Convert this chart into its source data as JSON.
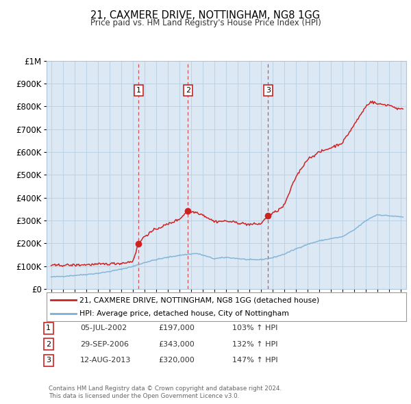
{
  "title": "21, CAXMERE DRIVE, NOTTINGHAM, NG8 1GG",
  "subtitle": "Price paid vs. HM Land Registry's House Price Index (HPI)",
  "background_color": "#ffffff",
  "plot_bg_color": "#dce9f5",
  "legend_line1": "21, CAXMERE DRIVE, NOTTINGHAM, NG8 1GG (detached house)",
  "legend_line2": "HPI: Average price, detached house, City of Nottingham",
  "hpi_color": "#7ab0d4",
  "price_color": "#cc2222",
  "vline_color": "#cc4444",
  "footer_line1": "Contains HM Land Registry data © Crown copyright and database right 2024.",
  "footer_line2": "This data is licensed under the Open Government Licence v3.0.",
  "transactions": [
    {
      "id": 1,
      "date": "05-JUL-2002",
      "price": 197000,
      "hpi_pct": "103%",
      "x_year": 2002.51
    },
    {
      "id": 2,
      "date": "29-SEP-2006",
      "price": 343000,
      "hpi_pct": "132%",
      "x_year": 2006.75
    },
    {
      "id": 3,
      "date": "12-AUG-2013",
      "price": 320000,
      "hpi_pct": "147%",
      "x_year": 2013.62
    }
  ],
  "ylim": [
    0,
    1000000
  ],
  "yticks": [
    0,
    100000,
    200000,
    300000,
    400000,
    500000,
    600000,
    700000,
    800000,
    900000,
    1000000
  ],
  "xlim_start": 1994.6,
  "xlim_end": 2025.5,
  "hpi_anchors": [
    [
      1995.0,
      52000
    ],
    [
      1996.0,
      55000
    ],
    [
      1997.0,
      59000
    ],
    [
      1998.0,
      63000
    ],
    [
      1999.0,
      68000
    ],
    [
      2000.0,
      76000
    ],
    [
      2001.0,
      86000
    ],
    [
      2002.0,
      98000
    ],
    [
      2003.0,
      115000
    ],
    [
      2004.0,
      128000
    ],
    [
      2005.0,
      138000
    ],
    [
      2006.0,
      147000
    ],
    [
      2007.0,
      153000
    ],
    [
      2007.5,
      155000
    ],
    [
      2008.0,
      148000
    ],
    [
      2009.0,
      132000
    ],
    [
      2010.0,
      138000
    ],
    [
      2011.0,
      133000
    ],
    [
      2012.0,
      127000
    ],
    [
      2013.0,
      128000
    ],
    [
      2014.0,
      136000
    ],
    [
      2015.0,
      152000
    ],
    [
      2016.0,
      175000
    ],
    [
      2017.0,
      195000
    ],
    [
      2018.0,
      210000
    ],
    [
      2019.0,
      220000
    ],
    [
      2020.0,
      228000
    ],
    [
      2021.0,
      258000
    ],
    [
      2022.0,
      298000
    ],
    [
      2022.5,
      313000
    ],
    [
      2023.0,
      325000
    ],
    [
      2024.0,
      320000
    ],
    [
      2025.2,
      315000
    ]
  ],
  "price_anchors": [
    [
      1995.0,
      102000
    ],
    [
      1996.0,
      104000
    ],
    [
      1997.0,
      104000
    ],
    [
      1998.0,
      106000
    ],
    [
      1999.0,
      107000
    ],
    [
      2000.0,
      110000
    ],
    [
      2001.0,
      112000
    ],
    [
      2002.0,
      120000
    ],
    [
      2002.51,
      197000
    ],
    [
      2003.0,
      230000
    ],
    [
      2004.0,
      262000
    ],
    [
      2005.0,
      283000
    ],
    [
      2006.0,
      305000
    ],
    [
      2006.75,
      343000
    ],
    [
      2007.0,
      338000
    ],
    [
      2007.5,
      335000
    ],
    [
      2008.0,
      325000
    ],
    [
      2009.0,
      295000
    ],
    [
      2010.0,
      297000
    ],
    [
      2011.0,
      290000
    ],
    [
      2012.0,
      282000
    ],
    [
      2013.0,
      285000
    ],
    [
      2013.62,
      320000
    ],
    [
      2014.0,
      330000
    ],
    [
      2014.5,
      345000
    ],
    [
      2015.0,
      365000
    ],
    [
      2016.0,
      490000
    ],
    [
      2017.0,
      568000
    ],
    [
      2018.0,
      598000
    ],
    [
      2019.0,
      618000
    ],
    [
      2020.0,
      640000
    ],
    [
      2021.0,
      718000
    ],
    [
      2022.0,
      798000
    ],
    [
      2022.4,
      820000
    ],
    [
      2022.8,
      815000
    ],
    [
      2023.0,
      810000
    ],
    [
      2023.5,
      808000
    ],
    [
      2024.0,
      805000
    ],
    [
      2024.3,
      800000
    ],
    [
      2024.7,
      790000
    ],
    [
      2025.2,
      785000
    ]
  ]
}
